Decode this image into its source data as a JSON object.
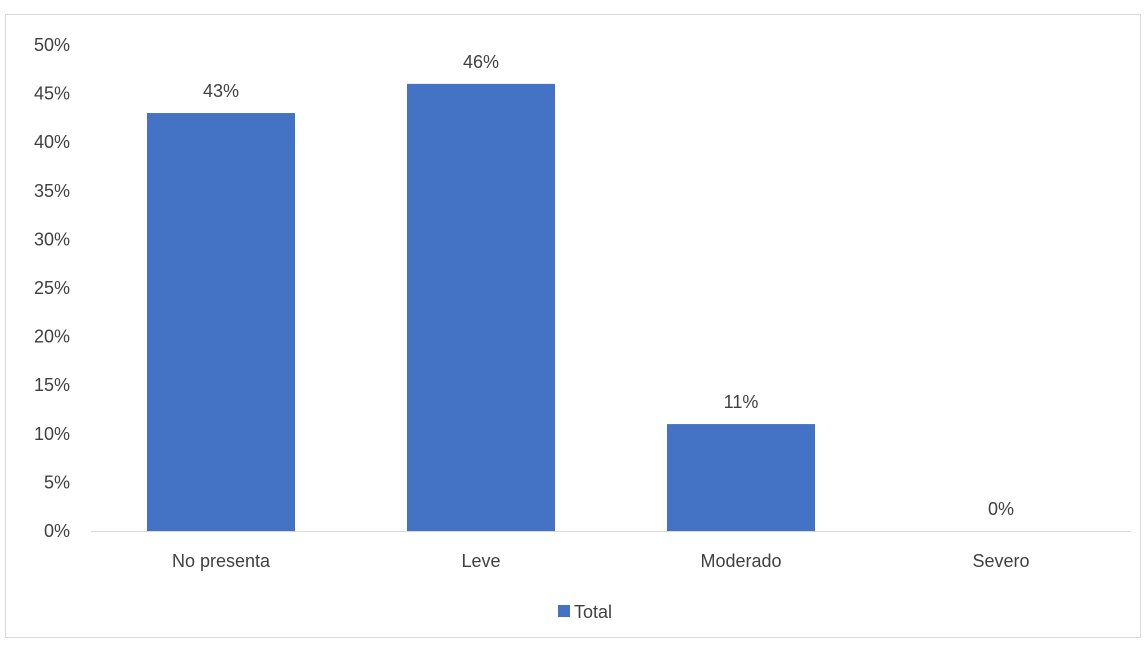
{
  "chart_data": {
    "type": "bar",
    "title": "",
    "xlabel": "",
    "ylabel": "",
    "categories": [
      "No presenta",
      "Leve",
      "Moderado",
      "Severo"
    ],
    "series": [
      {
        "name": "Total",
        "values": [
          43,
          46,
          11,
          0
        ],
        "data_labels": [
          "43%",
          "46%",
          "11%",
          "0%"
        ]
      }
    ],
    "ylim": [
      0,
      50
    ],
    "y_ticks": [
      0,
      5,
      10,
      15,
      20,
      25,
      30,
      35,
      40,
      45,
      50
    ],
    "y_tick_labels": [
      "0%",
      "5%",
      "10%",
      "15%",
      "20%",
      "25%",
      "30%",
      "35%",
      "40%",
      "45%",
      "50%"
    ],
    "grid": false,
    "legend_position": "bottom",
    "colors": {
      "bar": "#4472C4",
      "axis": "#d9d9d9",
      "text": "#404040"
    }
  }
}
